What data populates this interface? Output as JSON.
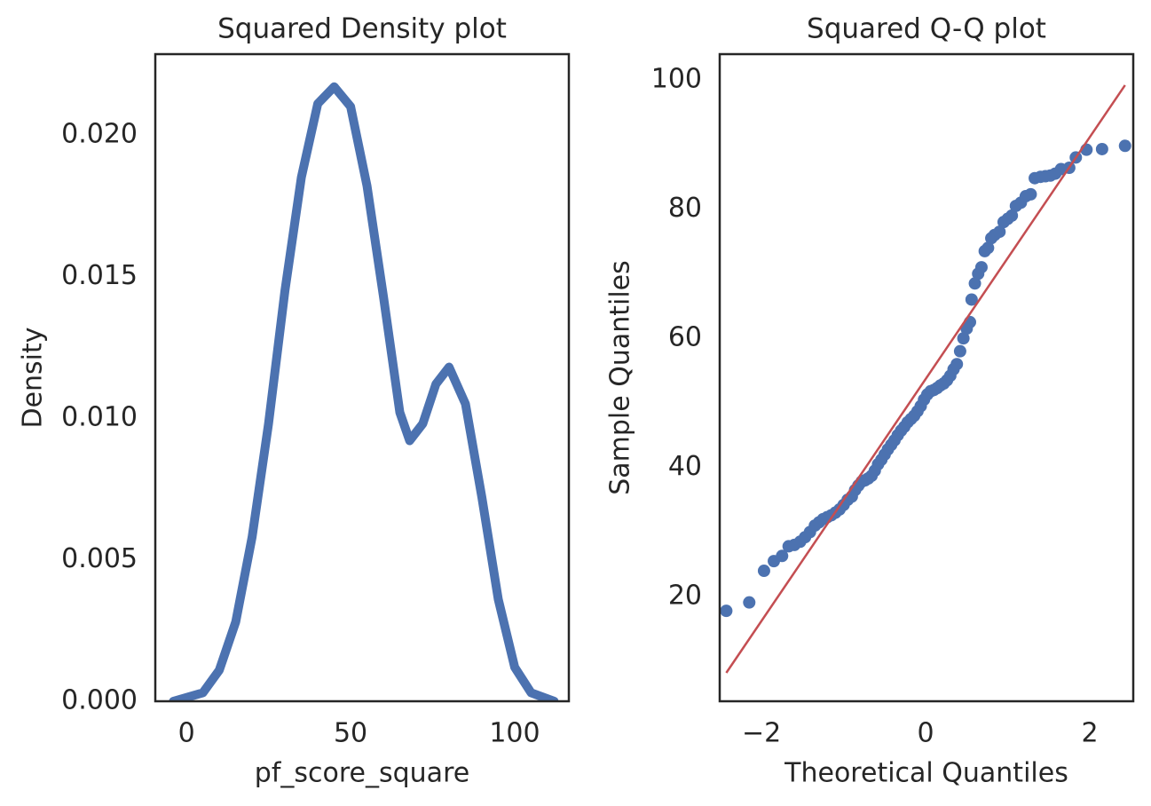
{
  "chart_data": [
    {
      "type": "line",
      "title": "Squared Density plot",
      "x_label": "pf_score_square",
      "y_label": "Density",
      "color": "#4c72b0",
      "x": [
        -4,
        5,
        10,
        15,
        20,
        25,
        30,
        35,
        40,
        45,
        50,
        55,
        60,
        65,
        68,
        72,
        76,
        80,
        85,
        90,
        95,
        100,
        105,
        112
      ],
      "values": [
        0.0,
        0.0003,
        0.0011,
        0.0028,
        0.0058,
        0.0098,
        0.0145,
        0.0185,
        0.0211,
        0.0217,
        0.021,
        0.0182,
        0.0143,
        0.0102,
        0.0092,
        0.0098,
        0.0112,
        0.0118,
        0.0105,
        0.0072,
        0.0036,
        0.0012,
        0.0003,
        0.0
      ],
      "xlim": [
        -9.5,
        116.5
      ],
      "ylim": [
        0,
        0.02285
      ],
      "xticks": [
        0,
        50,
        100
      ],
      "yticks": [
        {
          "value": 0,
          "label": "0.000"
        },
        0.005,
        {
          "value": 0.01,
          "label": "0.010"
        },
        0.015,
        {
          "value": 0.02,
          "label": "0.020"
        }
      ],
      "grid": false
    },
    {
      "type": "scatter",
      "title": "Squared Q-Q plot",
      "x_label": "Theoretical Quantiles",
      "y_label": "Sample Quantiles",
      "color": "#4c72b0",
      "x": [
        -2.43,
        -2.15,
        -1.97,
        -1.85,
        -1.75,
        -1.67,
        -1.6,
        -1.53,
        -1.47,
        -1.41,
        -1.35,
        -1.3,
        -1.25,
        -1.2,
        -1.15,
        -1.1,
        -1.05,
        -1.0,
        -0.95,
        -0.9,
        -0.86,
        -0.82,
        -0.78,
        -0.74,
        -0.7,
        -0.66,
        -0.62,
        -0.58,
        -0.54,
        -0.5,
        -0.46,
        -0.42,
        -0.38,
        -0.34,
        -0.3,
        -0.26,
        -0.22,
        -0.18,
        -0.14,
        -0.1,
        -0.06,
        -0.02,
        0.02,
        0.06,
        0.1,
        0.14,
        0.18,
        0.22,
        0.26,
        0.3,
        0.34,
        0.38,
        0.42,
        0.46,
        0.5,
        0.54,
        0.56,
        0.6,
        0.64,
        0.68,
        0.72,
        0.76,
        0.8,
        0.84,
        0.9,
        0.95,
        1.0,
        1.05,
        1.1,
        1.16,
        1.22,
        1.28,
        1.33,
        1.4,
        1.46,
        1.52,
        1.58,
        1.65,
        1.75,
        1.83,
        1.96,
        2.15,
        2.43
      ],
      "values": [
        17.8,
        19.1,
        24,
        25.5,
        26.3,
        27.8,
        28,
        28.5,
        29.2,
        30,
        31,
        31.5,
        32,
        32.3,
        32.6,
        33,
        33.5,
        34.2,
        35,
        35.5,
        36.5,
        37.2,
        37.8,
        38,
        38.3,
        38.7,
        39.5,
        40.5,
        41.2,
        42,
        42.8,
        43.5,
        44.2,
        45,
        45.7,
        46.3,
        47,
        47.5,
        48,
        48.7,
        49.5,
        50.5,
        51.3,
        51.8,
        52,
        52.3,
        52.7,
        53,
        53.5,
        54.2,
        55.2,
        56,
        58,
        60,
        61.5,
        62.5,
        66,
        68.5,
        70,
        71,
        73.5,
        74,
        75.5,
        76,
        76.5,
        78,
        78.5,
        79,
        80.5,
        81,
        82,
        82.3,
        84.8,
        85,
        85.1,
        85.2,
        85.5,
        86.2,
        86.4,
        88,
        89.2,
        89.3,
        89.8
      ],
      "reference_line": {
        "color": "#c44e52",
        "x": [
          -2.43,
          2.43
        ],
        "values": [
          8.2,
          99.2
        ]
      },
      "xlim": [
        -2.51,
        2.53
      ],
      "ylim": [
        3.8,
        104
      ],
      "xticks": [
        {
          "value": -2,
          "label": "−2"
        },
        0,
        2
      ],
      "yticks": [
        20,
        40,
        60,
        80,
        100
      ],
      "grid": false
    }
  ]
}
